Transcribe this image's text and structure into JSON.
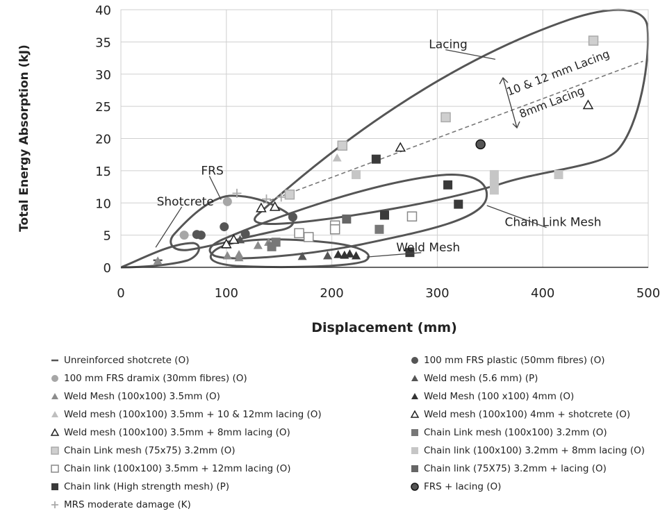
{
  "chart_data": {
    "type": "scatter",
    "title": "",
    "xlabel": "Displacement (mm)",
    "ylabel": "Total Energy Absorption (kJ)",
    "xlim": [
      0,
      500
    ],
    "ylim": [
      0,
      40
    ],
    "xticks": [
      "0",
      "100",
      "200",
      "300",
      "400",
      "500"
    ],
    "yticks": [
      "0",
      "5",
      "10",
      "15",
      "20",
      "25",
      "30",
      "35",
      "40"
    ],
    "grid": true,
    "legend_position": "bottom",
    "series": [
      {
        "name": "Unreinforced shotcrete (O)",
        "marker": "dash",
        "color": "#555555",
        "points": [
          [
            35,
            1.1
          ]
        ]
      },
      {
        "name": "100 mm FRS dramix (30mm fibres) (O)",
        "marker": "circle",
        "color": "#a6a6a6",
        "points": [
          [
            60,
            5.0
          ],
          [
            101,
            10.2
          ]
        ]
      },
      {
        "name": "Weld Mesh (100x100) 3.5mm (O)",
        "marker": "triangle",
        "color": "#8c8c8c",
        "points": [
          [
            35,
            1.0
          ],
          [
            101,
            1.8
          ],
          [
            112,
            1.5
          ],
          [
            112,
            2.0
          ],
          [
            130,
            3.4
          ],
          [
            140,
            3.9
          ]
        ]
      },
      {
        "name": "Weld mesh (100x100) 3.5mm + 10 & 12mm lacing (O)",
        "marker": "triangle",
        "color": "#bfbfbf",
        "points": [
          [
            205,
            17.0
          ],
          [
            210,
            18.7
          ]
        ]
      },
      {
        "name": "Weld mesh (100x100) 3.5mm + 8mm lacing (O)",
        "marker": "triangle-open",
        "color": "#222222",
        "points": [
          [
            133,
            9.2
          ],
          [
            146,
            9.4
          ],
          [
            265,
            18.6
          ],
          [
            443,
            25.2
          ]
        ]
      },
      {
        "name": "Chain Link mesh (75x75) 3.2mm (O)",
        "marker": "square-light",
        "color": "#aaaaaa",
        "points": [
          [
            160,
            11.3
          ],
          [
            308,
            23.3
          ],
          [
            448,
            35.2
          ],
          [
            210,
            18.9
          ]
        ]
      },
      {
        "name": "Chain link (100x100) 3.5mm + 12mm lacing (O)",
        "marker": "square-open",
        "color": "#888888",
        "points": [
          [
            169,
            5.3
          ],
          [
            178,
            4.7
          ],
          [
            203,
            6.5
          ],
          [
            203,
            5.9
          ],
          [
            276,
            7.9
          ]
        ]
      },
      {
        "name": "Chain link (High strength mesh) (P)",
        "marker": "square",
        "color": "#3a3a3a",
        "points": [
          [
            242,
            16.8
          ],
          [
            250,
            8.1
          ],
          [
            274,
            2.3
          ],
          [
            310,
            12.8
          ],
          [
            320,
            9.8
          ]
        ]
      },
      {
        "name": "MRS moderate damage (K)",
        "marker": "plus",
        "color": "#aaaaaa",
        "points": [
          [
            110,
            11.5
          ],
          [
            138,
            10.6
          ],
          [
            152,
            10.9
          ]
        ]
      },
      {
        "name": "100 mm FRS plastic (50mm fibres) (O)",
        "marker": "circle",
        "color": "#555555",
        "points": [
          [
            72,
            5.1
          ],
          [
            76,
            5.0
          ],
          [
            98,
            6.3
          ],
          [
            118,
            5.2
          ],
          [
            163,
            7.8
          ]
        ]
      },
      {
        "name": "Weld mesh (5.6 mm) (P)",
        "marker": "triangle",
        "color": "#555555",
        "points": [
          [
            100,
            3.5
          ],
          [
            113,
            4.3
          ],
          [
            172,
            1.7
          ],
          [
            196,
            1.8
          ]
        ]
      },
      {
        "name": "Weld Mesh (100 x100) 4mm (O)",
        "marker": "triangle",
        "color": "#333333",
        "points": [
          [
            206,
            2.0
          ],
          [
            212,
            1.9
          ],
          [
            217,
            2.1
          ],
          [
            223,
            1.8
          ]
        ]
      },
      {
        "name": "Weld mesh (100x100) 4mm + shotcrete (O)",
        "marker": "triangle-open",
        "color": "#222222",
        "points": [
          [
            100,
            3.6
          ],
          [
            107,
            4.3
          ]
        ]
      },
      {
        "name": "Chain Link mesh (100x100) 3.2mm (O)",
        "marker": "square",
        "color": "#777777",
        "points": [
          [
            147,
            3.9
          ],
          [
            143,
            3.2
          ],
          [
            245,
            5.9
          ]
        ]
      },
      {
        "name": "Chain link (100x100) 3.2mm +  8mm lacing (O)",
        "marker": "square",
        "color": "#c6c6c6",
        "points": [
          [
            223,
            14.4
          ],
          [
            354,
            14.4
          ],
          [
            354,
            13.2
          ],
          [
            354,
            12.0
          ],
          [
            415,
            14.4
          ]
        ]
      },
      {
        "name": "Chain link (75X75) 3.2mm + lacing (O)",
        "marker": "square",
        "color": "#666666",
        "points": [
          [
            214,
            7.5
          ]
        ]
      },
      {
        "name": "FRS + lacing (O)",
        "marker": "circle-dark",
        "color": "#555555",
        "points": [
          [
            341,
            19.1
          ]
        ]
      }
    ],
    "trendline": {
      "style": "dashed",
      "color": "#777777",
      "from": [
        135,
        10.0
      ],
      "to": [
        495,
        32.0
      ]
    },
    "annotations": [
      {
        "text": "Lacing",
        "label_at": [
          292,
          34.0
        ],
        "arrow_to": [
          355,
          32.3
        ]
      },
      {
        "text": "FRS",
        "label_at": [
          76,
          14.4
        ],
        "arrow_to": [
          95,
          10.5
        ]
      },
      {
        "text": "Shotcrete",
        "label_at": [
          34,
          9.6
        ],
        "arrow_to": [
          33,
          3.1
        ]
      },
      {
        "text": "Chain Link Mesh",
        "label_at": [
          364,
          6.4
        ],
        "arrow_to": [
          347,
          9.6
        ]
      },
      {
        "text": "Weld Mesh",
        "label_at": [
          261,
          2.5
        ],
        "arrow_to": [
          233,
          1.6
        ]
      },
      {
        "text": "10 & 12  mm Lacing",
        "rotated": true
      },
      {
        "text": "8mm Lacing",
        "rotated": true
      }
    ]
  },
  "legend": {
    "left": [
      {
        "label": "Unreinforced shotcrete (O)",
        "marker": "dash",
        "color": "#555555"
      },
      {
        "label": "100 mm FRS dramix (30mm fibres) (O)",
        "marker": "circle",
        "color": "#a6a6a6"
      },
      {
        "label": "Weld Mesh (100x100) 3.5mm (O)",
        "marker": "triangle",
        "color": "#8c8c8c"
      },
      {
        "label": "Weld mesh (100x100) 3.5mm + 10 & 12mm lacing (O)",
        "marker": "triangle",
        "color": "#bfbfbf"
      },
      {
        "label": "Weld mesh (100x100) 3.5mm + 8mm lacing (O)",
        "marker": "triangle-open",
        "color": "#222222"
      },
      {
        "label": "Chain Link mesh (75x75) 3.2mm (O)",
        "marker": "square-light",
        "color": "#aaaaaa"
      },
      {
        "label": "Chain link (100x100) 3.5mm +  12mm lacing (O)",
        "marker": "square-open",
        "color": "#888888"
      },
      {
        "label": "Chain link (High strength mesh) (P)",
        "marker": "square",
        "color": "#3a3a3a"
      },
      {
        "label": "MRS moderate damage (K)",
        "marker": "plus",
        "color": "#aaaaaa"
      }
    ],
    "right": [
      {
        "label": "100 mm FRS plastic (50mm fibres) (O)",
        "marker": "circle",
        "color": "#555555"
      },
      {
        "label": "Weld mesh (5.6 mm) (P)",
        "marker": "triangle",
        "color": "#555555"
      },
      {
        "label": "Weld Mesh (100 x100) 4mm (O)",
        "marker": "triangle",
        "color": "#333333"
      },
      {
        "label": "Weld mesh (100x100) 4mm + shotcrete (O)",
        "marker": "triangle-open",
        "color": "#222222"
      },
      {
        "label": "Chain Link mesh (100x100) 3.2mm (O)",
        "marker": "square",
        "color": "#777777"
      },
      {
        "label": "Chain link (100x100) 3.2mm +  8mm lacing (O)",
        "marker": "square",
        "color": "#c6c6c6"
      },
      {
        "label": "Chain link (75X75) 3.2mm + lacing (O)",
        "marker": "square",
        "color": "#666666"
      },
      {
        "label": "FRS + lacing (O)",
        "marker": "circle-dark",
        "color": "#555555"
      }
    ]
  },
  "colors": {
    "envelope": "#555555",
    "grid": "#cfcfcf",
    "axis": "#333333"
  }
}
